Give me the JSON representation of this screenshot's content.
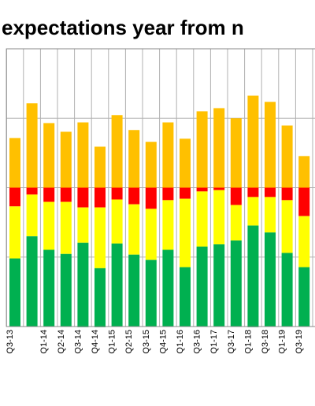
{
  "chart_data": {
    "type": "stacked-bar",
    "title": "expectations year from n",
    "categories": [
      "Q3-13",
      null,
      "Q1-14",
      "Q2-14",
      "Q3-14",
      "Q4-14",
      "Q1-15",
      "Q2-15",
      "Q3-15",
      "Q4-15",
      "Q1-16",
      "Q3-16",
      "Q1-17",
      "Q3-17",
      "Q1-18",
      "Q3-18",
      "Q1-19",
      "Q3-19"
    ],
    "series": [
      {
        "color": "#FFC000",
        "values": [
          14.3,
          24.3,
          18.6,
          16.1,
          18.8,
          11.8,
          20.9,
          16.6,
          13.2,
          18.8,
          14.1,
          22,
          22.9,
          20,
          26.5,
          24.7,
          17.9,
          9.1
        ]
      },
      {
        "color": "#FF0000",
        "values": [
          -5.4,
          -2,
          -4.1,
          -4.1,
          -5.7,
          -5.7,
          -3.4,
          -4.8,
          -6.1,
          -3.6,
          -3.2,
          -1.1,
          -0.7,
          -5,
          -2.7,
          -2.7,
          -3.6,
          -8.2
        ]
      },
      {
        "color": "#FFFF00",
        "values": [
          -15,
          -12,
          -13.8,
          -15,
          -10.2,
          -17.5,
          -12.7,
          -14.5,
          -14.7,
          -14.3,
          -19.7,
          -15.9,
          -15.6,
          -10.2,
          -8.2,
          -10.2,
          -15.2,
          -14.7
        ]
      },
      {
        "color": "#00B050",
        "values": [
          -19.7,
          -26,
          -22.2,
          -21,
          -24.3,
          -17,
          -24,
          -20.6,
          -19.3,
          -22.2,
          -17.2,
          -23.1,
          -23.6,
          -24.7,
          -29.3,
          -27.2,
          -21.1,
          -17.2
        ]
      }
    ],
    "ylim": [
      -40,
      40
    ],
    "yticks": [
      -40,
      -20,
      0,
      20,
      40
    ],
    "grid": true
  }
}
